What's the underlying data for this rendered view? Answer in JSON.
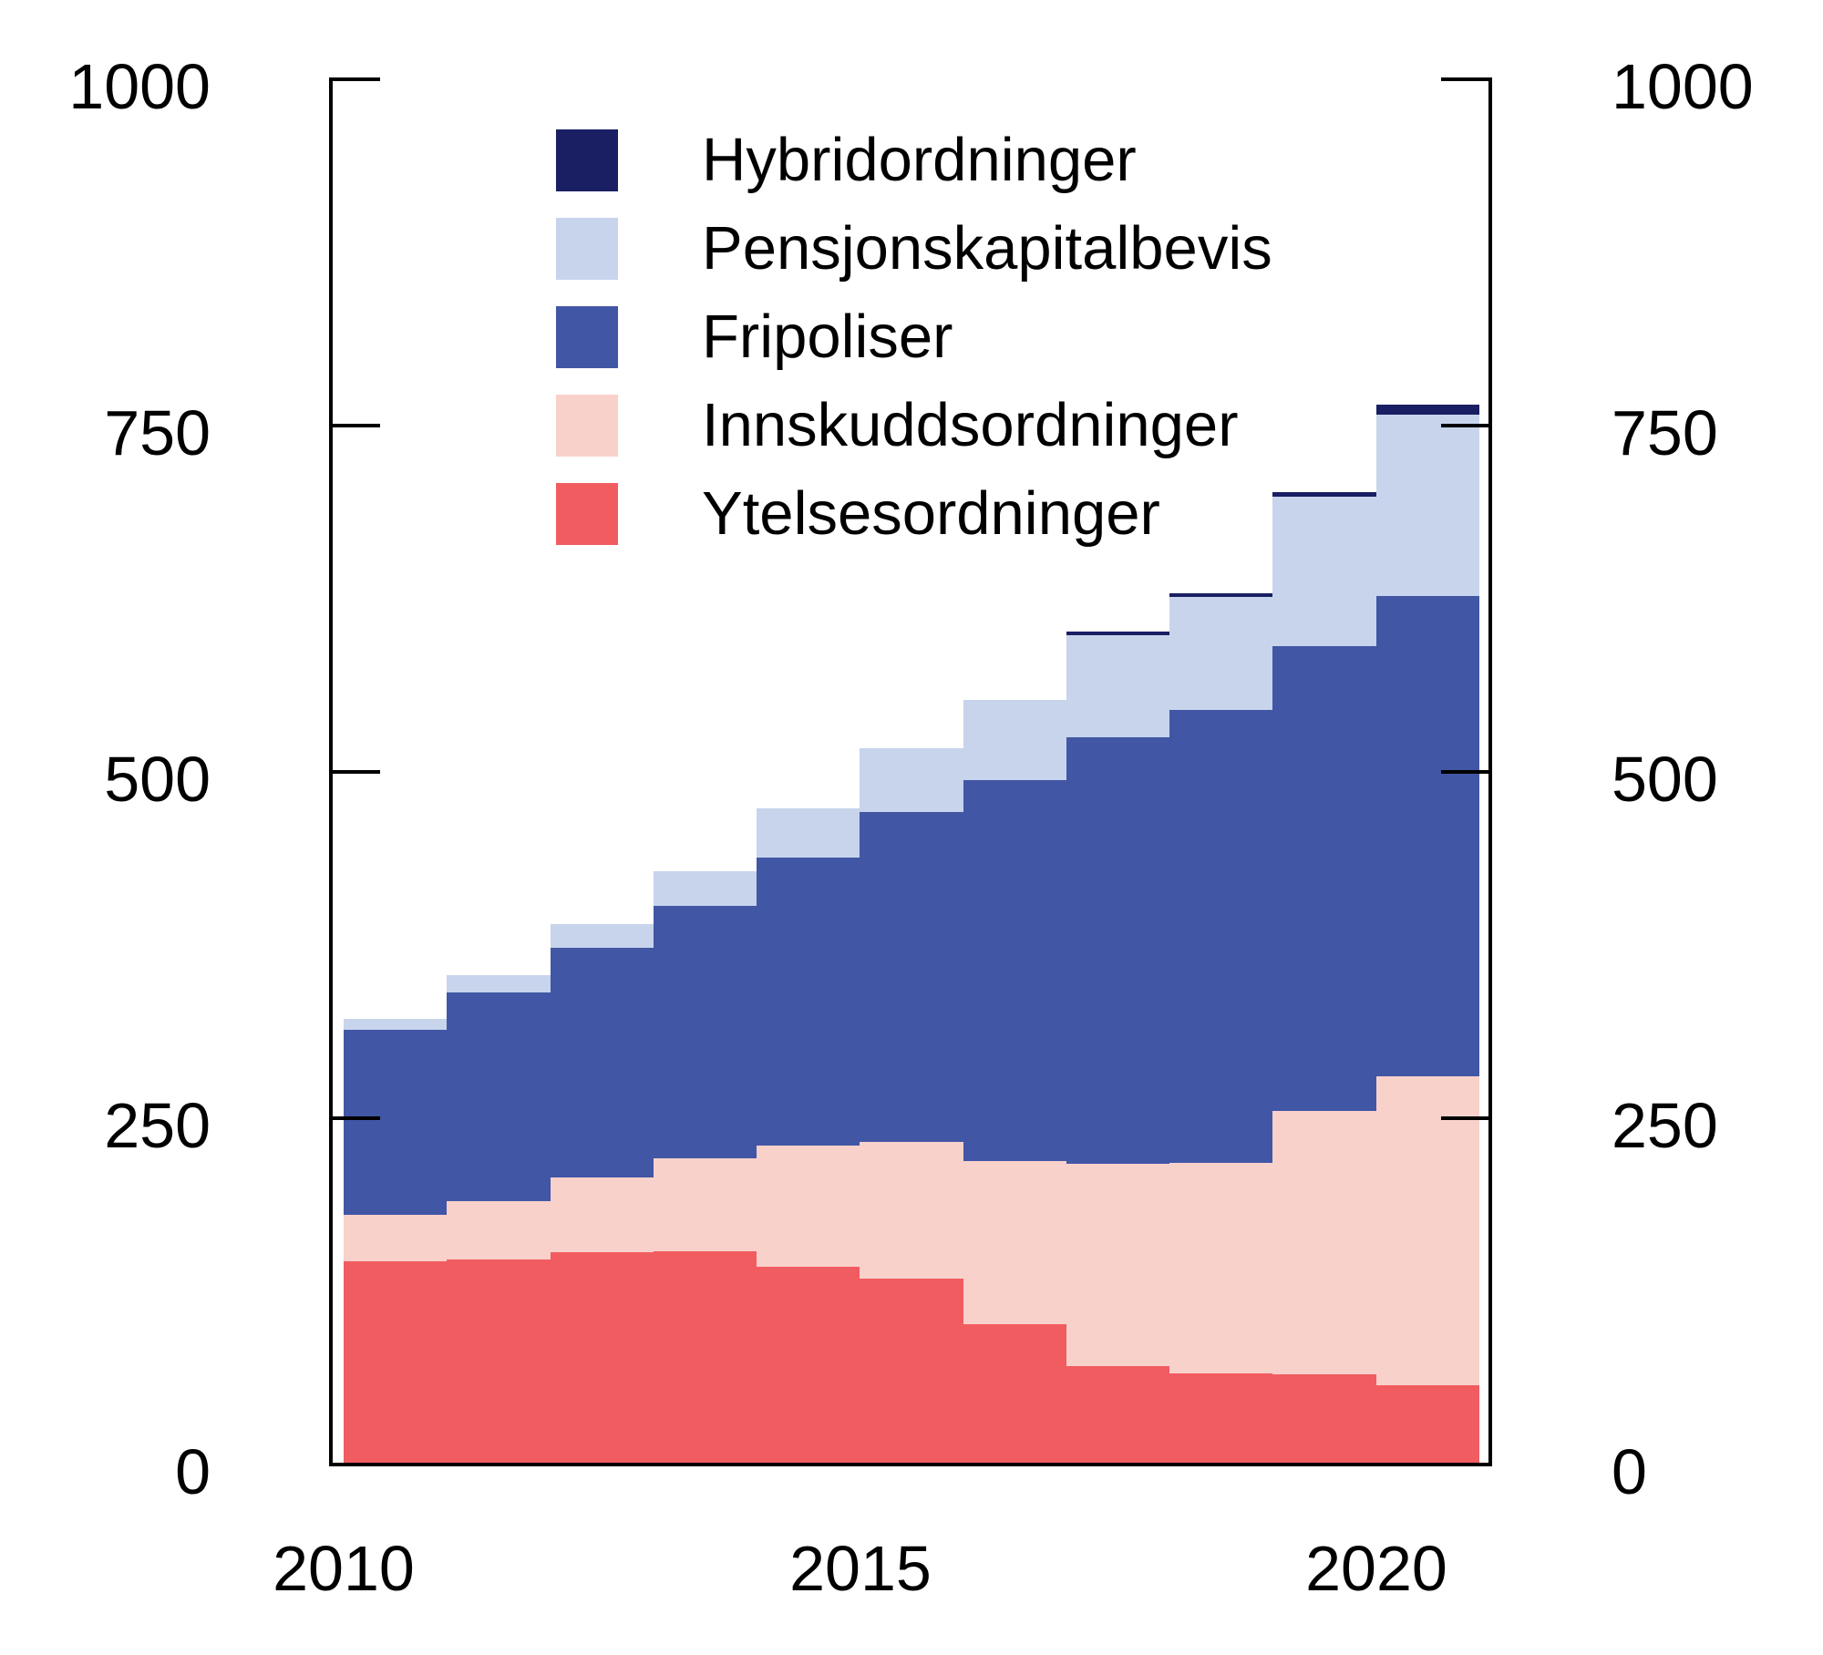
{
  "chart_data": {
    "type": "area",
    "variant": "stacked step area (flush annual bars)",
    "title": "",
    "xlabel": "",
    "ylabel": "",
    "x": [
      2010,
      2011,
      2012,
      2013,
      2014,
      2015,
      2016,
      2017,
      2018,
      2019,
      2020
    ],
    "series": [
      {
        "name": "Ytelsesordninger",
        "color": "#f15c61",
        "values": [
          147,
          148,
          153,
          154,
          143,
          134,
          101,
          71,
          66,
          65,
          57
        ]
      },
      {
        "name": "Innskuddsordninger",
        "color": "#f9d1cb",
        "values": [
          33,
          42,
          54,
          67,
          87,
          99,
          118,
          146,
          152,
          190,
          223
        ]
      },
      {
        "name": "Fripoliser",
        "color": "#4156a5",
        "values": [
          134,
          151,
          166,
          182,
          208,
          238,
          275,
          308,
          327,
          336,
          347
        ]
      },
      {
        "name": "Pensjonskapitalbevis",
        "color": "#c7d4ec",
        "values": [
          8,
          12,
          17,
          25,
          36,
          46,
          58,
          74,
          81,
          108,
          131
        ]
      },
      {
        "name": "Hybridordninger",
        "color": "#1a1f63",
        "values": [
          0,
          0,
          0,
          0,
          0,
          0,
          0,
          2,
          3,
          3,
          7
        ]
      }
    ],
    "stack_totals": [
      322,
      353,
      390,
      428,
      474,
      517,
      552,
      601,
      629,
      702,
      765
    ],
    "legend": [
      {
        "label": "Hybridordninger",
        "color": "#1a1f63"
      },
      {
        "label": "Pensjonskapitalbevis",
        "color": "#c7d4ec"
      },
      {
        "label": "Fripoliser",
        "color": "#4156a5"
      },
      {
        "label": "Innskuddsordninger",
        "color": "#f9d1cb"
      },
      {
        "label": "Ytelsesordninger",
        "color": "#f15c61"
      }
    ],
    "legend_position": "upper left inside plot",
    "grid": false,
    "y_axis": {
      "min": 0,
      "max": 1000,
      "ticks": [
        1000,
        750,
        500,
        250,
        0
      ],
      "sides": "both"
    },
    "x_axis": {
      "ticks": [
        "2010",
        "2015",
        "2020"
      ]
    }
  }
}
